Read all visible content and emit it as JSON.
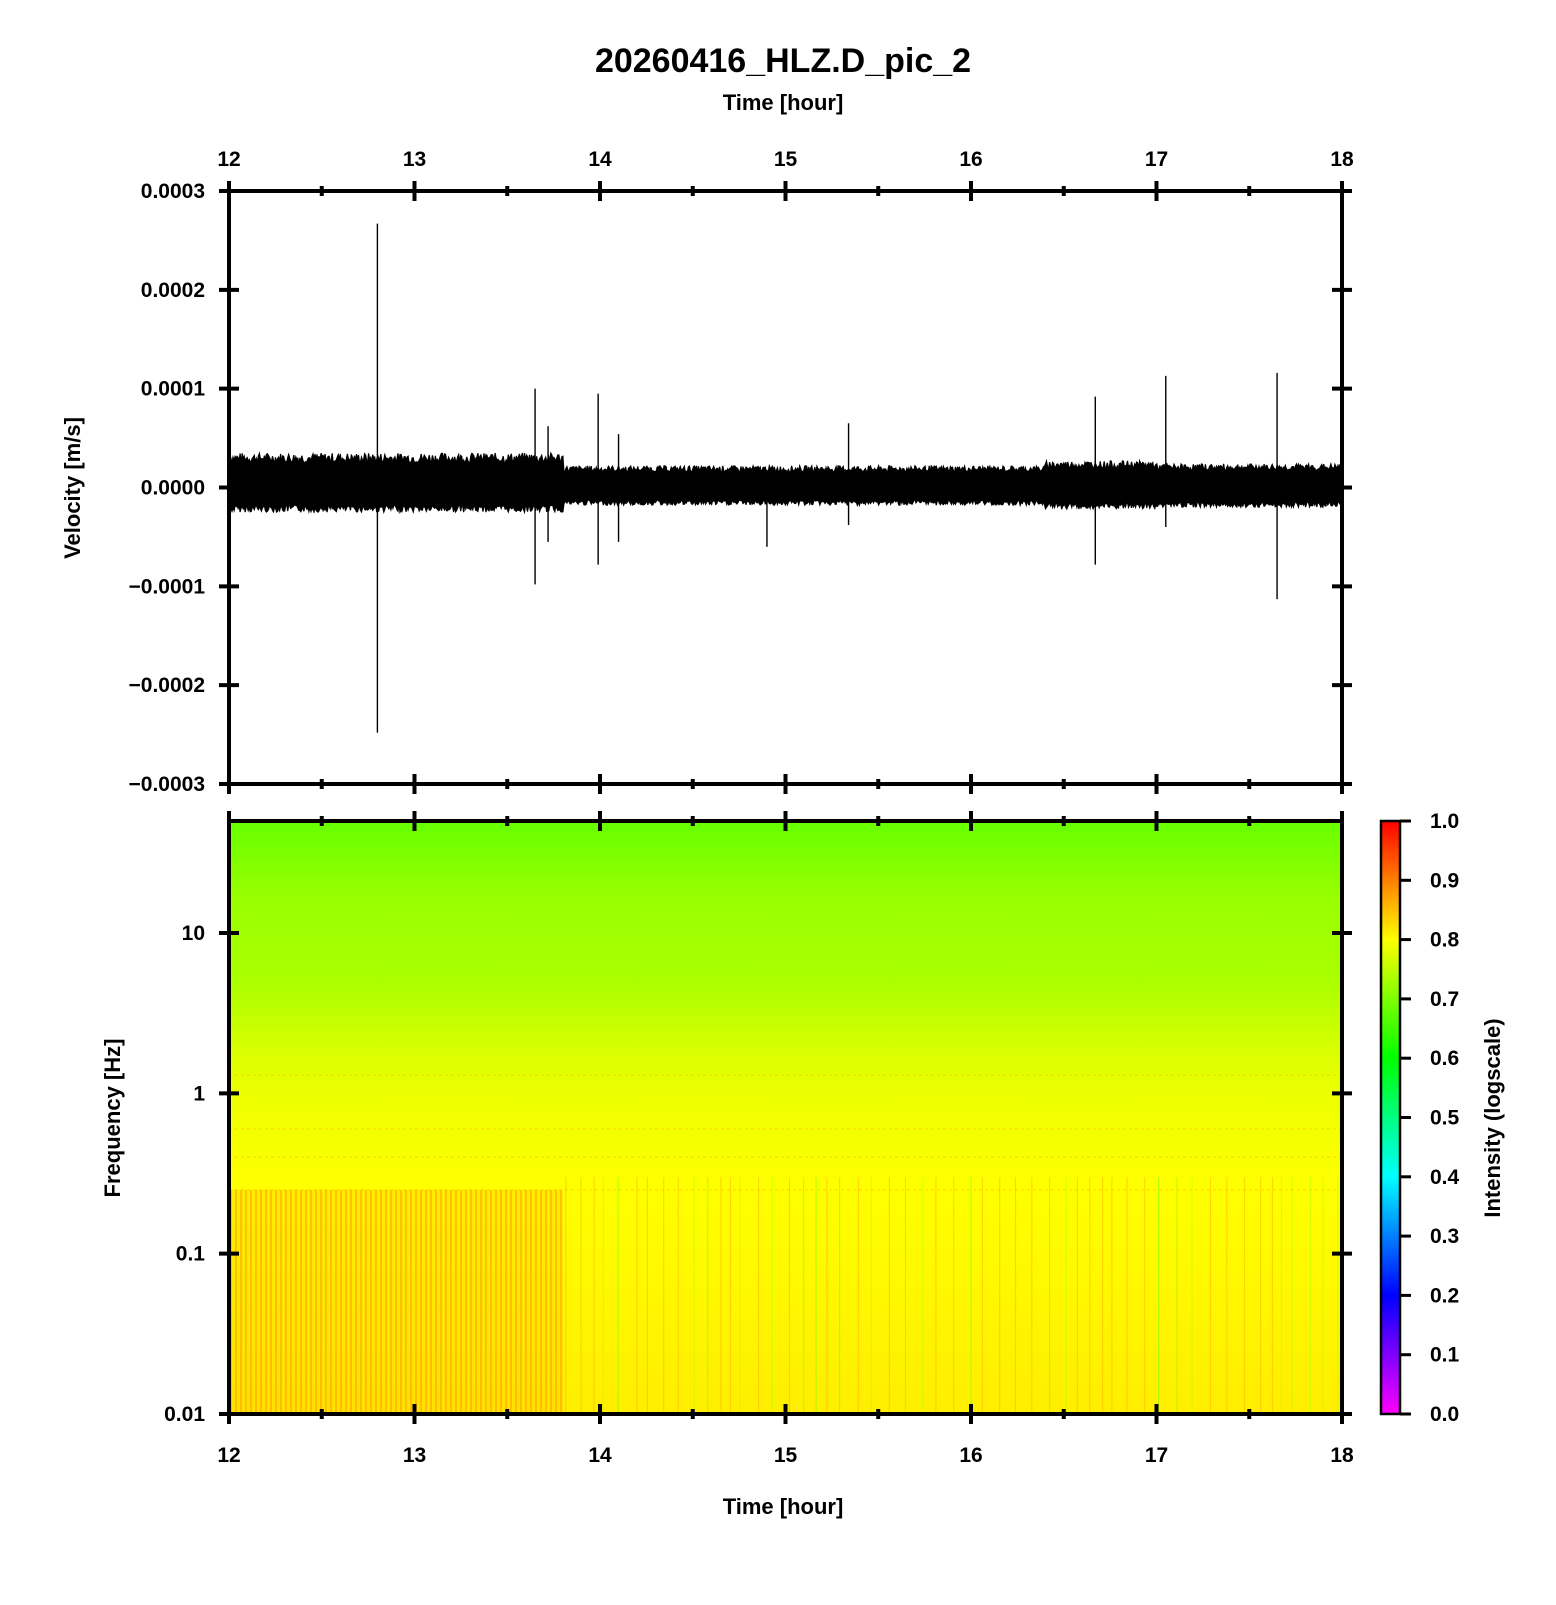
{
  "figure": {
    "title": "20260416_HLZ.D_pic_2"
  },
  "chart_data": [
    {
      "type": "line",
      "name": "waveform",
      "xlabel_top": "Time [hour]",
      "ylabel": "Velocity [m/s]",
      "xlim": [
        12,
        18
      ],
      "ylim": [
        -0.0003,
        0.0003
      ],
      "x_ticks": [
        12,
        13,
        14,
        15,
        16,
        17,
        18
      ],
      "x_tick_labels": [
        "12",
        "13",
        "14",
        "15",
        "16",
        "17",
        "18"
      ],
      "y_ticks": [
        0.0003,
        0.0002,
        0.0001,
        0.0,
        -0.0001,
        -0.0002,
        -0.0003
      ],
      "y_tick_labels": [
        "0.0003",
        "0.0002",
        "0.0001",
        "0.0000",
        "−0.0001",
        "−0.0002",
        "−0.0003"
      ],
      "grid": false,
      "line_color": "#000000",
      "noise_envelope": [
        {
          "x": [
            12.0,
            13.8
          ],
          "upper": 3.5e-05,
          "lower": -2.5e-05
        },
        {
          "x": [
            13.8,
            16.4
          ],
          "upper": 2.2e-05,
          "lower": -1.8e-05
        },
        {
          "x": [
            16.4,
            17.0
          ],
          "upper": 2.7e-05,
          "lower": -2.2e-05
        },
        {
          "x": [
            17.0,
            18.0
          ],
          "upper": 2.4e-05,
          "lower": -2e-05
        }
      ],
      "spikes": [
        {
          "x": 12.8,
          "ymax": 0.000267,
          "ymin": -0.000248
        },
        {
          "x": 13.65,
          "ymax": 0.0001,
          "ymin": -9.8e-05
        },
        {
          "x": 13.72,
          "ymax": 6.2e-05,
          "ymin": -5.5e-05
        },
        {
          "x": 13.99,
          "ymax": 9.5e-05,
          "ymin": -7.8e-05
        },
        {
          "x": 14.1,
          "ymax": 5.4e-05,
          "ymin": -5.5e-05
        },
        {
          "x": 14.9,
          "ymax": 1.8e-05,
          "ymin": -6e-05
        },
        {
          "x": 15.34,
          "ymax": 6.5e-05,
          "ymin": -3.8e-05
        },
        {
          "x": 16.67,
          "ymax": 9.2e-05,
          "ymin": -7.8e-05
        },
        {
          "x": 17.05,
          "ymax": 0.000113,
          "ymin": -4e-05
        },
        {
          "x": 17.65,
          "ymax": 0.000116,
          "ymin": -0.000113
        }
      ]
    },
    {
      "type": "heatmap",
      "name": "spectrogram",
      "xlabel": "Time [hour]",
      "ylabel": "Frequency [Hz]",
      "xlim": [
        12,
        18
      ],
      "ylim": [
        0.01,
        50
      ],
      "y_scale": "log",
      "x_ticks": [
        12,
        13,
        14,
        15,
        16,
        17,
        18
      ],
      "x_tick_labels": [
        "12",
        "13",
        "14",
        "15",
        "16",
        "17",
        "18"
      ],
      "y_ticks": [
        10,
        1,
        0.1,
        0.01
      ],
      "y_tick_labels": [
        "10",
        "1",
        "0.1",
        "0.01"
      ],
      "intensity_profile": [
        {
          "freq": 50,
          "value": 0.6
        },
        {
          "freq": 10,
          "value": 0.67
        },
        {
          "freq": 3,
          "value": 0.72
        },
        {
          "freq": 1,
          "value": 0.78
        },
        {
          "freq": 0.25,
          "value": 0.8
        },
        {
          "freq": 0.1,
          "value": 0.81
        },
        {
          "freq": 0.01,
          "value": 0.82
        }
      ],
      "high_energy_interval": {
        "x": [
          12.0,
          13.8
        ],
        "value": 0.86
      },
      "colorbar": {
        "label": "Intensity (logscale)",
        "range": [
          0.0,
          1.0
        ],
        "ticks": [
          1.0,
          0.9,
          0.8,
          0.7,
          0.6,
          0.5,
          0.4,
          0.3,
          0.2,
          0.1,
          0.0
        ],
        "tick_labels": [
          "1.0",
          "0.9",
          "0.8",
          "0.7",
          "0.6",
          "0.5",
          "0.4",
          "0.3",
          "0.2",
          "0.1",
          "0.0"
        ],
        "colors": [
          "#ff00ff",
          "#0000ff",
          "#00ffff",
          "#00ff00",
          "#ffff00",
          "#ff0000"
        ]
      }
    }
  ]
}
